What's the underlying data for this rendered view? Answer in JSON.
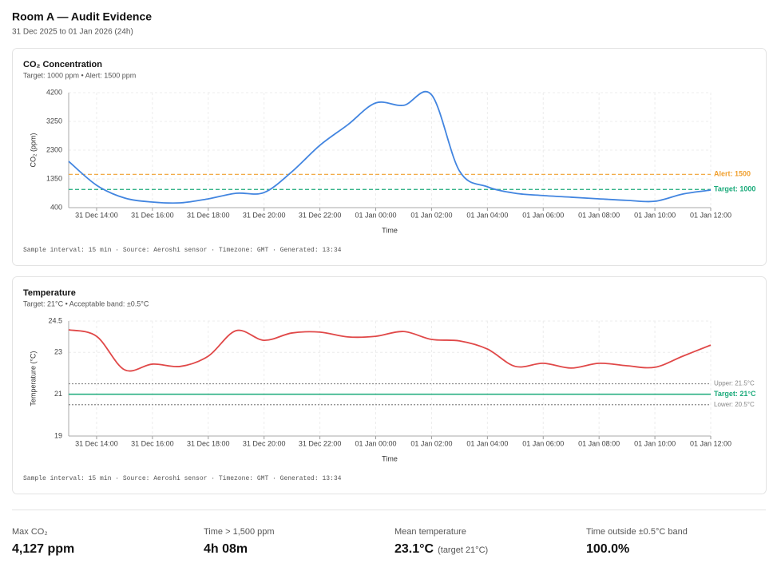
{
  "header": {
    "title": "Room A — Audit Evidence",
    "subtitle": "31 Dec 2025 to 01 Jan 2026 (24h)"
  },
  "chart_data": [
    {
      "type": "line",
      "title": "CO₂ Concentration",
      "subtitle": "Target: 1000 ppm • Alert: 1500 ppm",
      "xlabel": "Time",
      "ylabel": "CO₂ (ppm)",
      "x": [
        "31 Dec 13:00",
        "31 Dec 14:00",
        "31 Dec 15:00",
        "31 Dec 16:00",
        "31 Dec 17:00",
        "31 Dec 18:00",
        "31 Dec 19:00",
        "31 Dec 20:00",
        "31 Dec 21:00",
        "31 Dec 22:00",
        "31 Dec 23:00",
        "01 Jan 00:00",
        "01 Jan 01:00",
        "01 Jan 02:00",
        "01 Jan 03:00",
        "01 Jan 04:00",
        "01 Jan 05:00",
        "01 Jan 06:00",
        "01 Jan 07:00",
        "01 Jan 08:00",
        "01 Jan 09:00",
        "01 Jan 10:00",
        "01 Jan 11:00",
        "01 Jan 12:00"
      ],
      "values": [
        1930,
        1140,
        720,
        585,
        558,
        690,
        875,
        900,
        1590,
        2460,
        3140,
        3860,
        3780,
        4127,
        1610,
        1090,
        875,
        800,
        745,
        690,
        640,
        610,
        850,
        980
      ],
      "color": "#4285e0",
      "xlim": [
        "31 Dec 13:00",
        "01 Jan 12:00"
      ],
      "xticks": [
        "31 Dec 14:00",
        "31 Dec 16:00",
        "31 Dec 18:00",
        "31 Dec 20:00",
        "31 Dec 22:00",
        "01 Jan 00:00",
        "01 Jan 02:00",
        "01 Jan 04:00",
        "01 Jan 06:00",
        "01 Jan 08:00",
        "01 Jan 10:00",
        "01 Jan 12:00"
      ],
      "ylim": [
        400,
        4200
      ],
      "yticks": [
        400,
        1350,
        2300,
        3250,
        4200
      ],
      "grid": true,
      "reference_lines": [
        {
          "value": 1500,
          "label": "Alert: 1500",
          "color": "#f0a030",
          "style": "dashed",
          "bold": true
        },
        {
          "value": 1000,
          "label": "Target: 1000",
          "color": "#1aaa7a",
          "style": "dashed",
          "bold": true
        }
      ],
      "footnote": "Sample interval: 15 min · Source: Aeroshi sensor · Timezone: GMT · Generated: 13:34"
    },
    {
      "type": "line",
      "title": "Temperature",
      "subtitle": "Target: 21°C • Acceptable band: ±0.5°C",
      "xlabel": "Time",
      "ylabel": "Temperature (°C)",
      "x": [
        "31 Dec 13:00",
        "31 Dec 14:00",
        "31 Dec 15:00",
        "31 Dec 16:00",
        "31 Dec 17:00",
        "31 Dec 18:00",
        "31 Dec 19:00",
        "31 Dec 20:00",
        "31 Dec 21:00",
        "31 Dec 22:00",
        "31 Dec 23:00",
        "01 Jan 00:00",
        "01 Jan 01:00",
        "01 Jan 02:00",
        "01 Jan 03:00",
        "01 Jan 04:00",
        "01 Jan 05:00",
        "01 Jan 06:00",
        "01 Jan 07:00",
        "01 Jan 08:00",
        "01 Jan 09:00",
        "01 Jan 10:00",
        "01 Jan 11:00",
        "01 Jan 12:00"
      ],
      "values": [
        24.08,
        23.77,
        22.17,
        22.44,
        22.33,
        22.82,
        24.04,
        23.58,
        23.93,
        23.97,
        23.74,
        23.77,
        24.0,
        23.62,
        23.55,
        23.16,
        22.33,
        22.48,
        22.25,
        22.48,
        22.36,
        22.29,
        22.82,
        23.35
      ],
      "color": "#e04848",
      "xlim": [
        "31 Dec 13:00",
        "01 Jan 12:00"
      ],
      "xticks": [
        "31 Dec 14:00",
        "31 Dec 16:00",
        "31 Dec 18:00",
        "31 Dec 20:00",
        "31 Dec 22:00",
        "01 Jan 00:00",
        "01 Jan 02:00",
        "01 Jan 04:00",
        "01 Jan 06:00",
        "01 Jan 08:00",
        "01 Jan 10:00",
        "01 Jan 12:00"
      ],
      "ylim": [
        19,
        24.5
      ],
      "yticks": [
        19,
        21,
        23,
        24.5
      ],
      "grid": true,
      "reference_lines": [
        {
          "value": 21.5,
          "label": "Upper: 21.5°C",
          "color": "#888888",
          "style": "dotted",
          "bold": false
        },
        {
          "value": 21,
          "label": "Target: 21°C",
          "color": "#1aaa7a",
          "style": "solid",
          "bold": true
        },
        {
          "value": 20.5,
          "label": "Lower: 20.5°C",
          "color": "#888888",
          "style": "dotted",
          "bold": false
        }
      ],
      "footnote": "Sample interval: 15 min · Source: Aeroshi sensor · Timezone: GMT · Generated: 13:34"
    }
  ],
  "stats": [
    {
      "label": "Max CO₂",
      "value": "4,127 ppm"
    },
    {
      "label": "Time > 1,500 ppm",
      "value": "4h 08m"
    },
    {
      "label": "Mean temperature",
      "value": "23.1°C",
      "note": "(target 21°C)"
    },
    {
      "label": "Time outside ±0.5°C band",
      "value": "100.0%"
    }
  ]
}
